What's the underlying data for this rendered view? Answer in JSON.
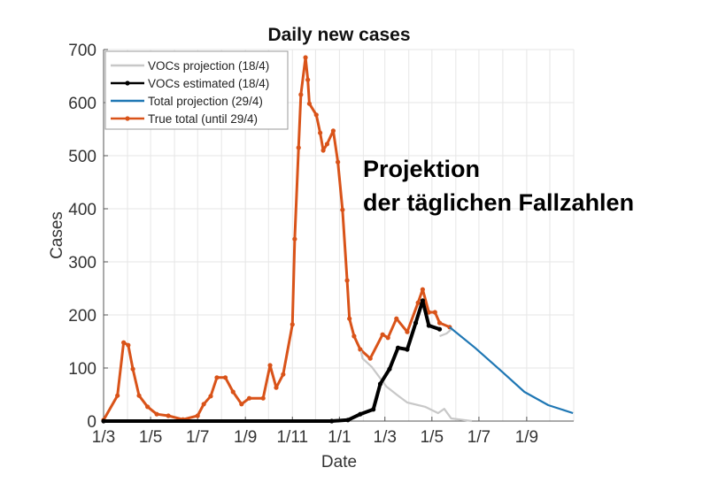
{
  "chart_data": {
    "type": "line",
    "title": "Daily new cases",
    "xlabel": "Date",
    "ylabel": "Cases",
    "xlim": [
      "2020-03-01",
      "2021-11-01"
    ],
    "ylim": [
      0,
      700
    ],
    "yticks": [
      0,
      100,
      200,
      300,
      400,
      500,
      600,
      700
    ],
    "xticks": [
      {
        "date": "2020-03-01",
        "label": "1/3"
      },
      {
        "date": "2020-05-01",
        "label": "1/5"
      },
      {
        "date": "2020-07-01",
        "label": "1/7"
      },
      {
        "date": "2020-09-01",
        "label": "1/9"
      },
      {
        "date": "2020-11-01",
        "label": "1/11"
      },
      {
        "date": "2021-01-01",
        "label": "1/1"
      },
      {
        "date": "2021-03-01",
        "label": "1/3"
      },
      {
        "date": "2021-05-01",
        "label": "1/5"
      },
      {
        "date": "2021-07-01",
        "label": "1/7"
      },
      {
        "date": "2021-09-01",
        "label": "1/9"
      }
    ],
    "grid": true,
    "legend_position": "top-left",
    "annotation": [
      "Projektion",
      "der täglichen Fallzahlen"
    ],
    "series": [
      {
        "name": "VOCs projection (18/4)",
        "color": "#c8c8c8",
        "marker": false,
        "points": [
          [
            "2021-01-29",
            132
          ],
          [
            "2021-01-31",
            118
          ],
          [
            "2021-02-12",
            102
          ],
          [
            "2021-03-03",
            65
          ],
          [
            "2021-03-18",
            48
          ],
          [
            "2021-03-30",
            35
          ],
          [
            "2021-04-22",
            27
          ],
          [
            "2021-05-09",
            15
          ],
          [
            "2021-05-17",
            23
          ],
          [
            "2021-05-26",
            5
          ],
          [
            "2021-06-22",
            0
          ],
          null,
          [
            "2021-05-11",
            160
          ],
          [
            "2021-05-20",
            165
          ],
          [
            "2021-05-28",
            175
          ]
        ]
      },
      {
        "name": "VOCs estimated (18/4)",
        "color": "#000000",
        "marker": true,
        "points": [
          [
            "2020-03-01",
            0
          ],
          [
            "2020-12-22",
            0
          ],
          [
            "2021-01-12",
            2
          ],
          [
            "2021-01-28",
            13
          ],
          [
            "2021-02-14",
            22
          ],
          [
            "2021-02-23",
            70
          ],
          [
            "2021-03-07",
            98
          ],
          [
            "2021-03-18",
            138
          ],
          [
            "2021-03-30",
            135
          ],
          [
            "2021-04-10",
            185
          ],
          [
            "2021-04-19",
            227
          ],
          [
            "2021-04-27",
            180
          ],
          [
            "2021-05-11",
            173
          ]
        ]
      },
      {
        "name": "Total projection (29/4)",
        "color": "#1f77b4",
        "marker": false,
        "points": [
          [
            "2021-05-24",
            177
          ],
          [
            "2021-06-26",
            138
          ],
          [
            "2021-07-31",
            93
          ],
          [
            "2021-08-29",
            55
          ],
          [
            "2021-09-29",
            30
          ],
          [
            "2021-10-31",
            15
          ]
        ]
      },
      {
        "name": "True total (until 29/4)",
        "color": "#d95319",
        "marker": true,
        "points": [
          [
            "2020-03-01",
            2
          ],
          [
            "2020-03-19",
            48
          ],
          [
            "2020-03-27",
            148
          ],
          [
            "2020-04-02",
            143
          ],
          [
            "2020-04-08",
            98
          ],
          [
            "2020-04-16",
            48
          ],
          [
            "2020-04-27",
            27
          ],
          [
            "2020-05-09",
            13
          ],
          [
            "2020-05-24",
            10
          ],
          [
            "2020-06-12",
            3
          ],
          [
            "2020-07-01",
            10
          ],
          [
            "2020-07-09",
            32
          ],
          [
            "2020-07-18",
            47
          ],
          [
            "2020-07-26",
            82
          ],
          [
            "2020-08-06",
            82
          ],
          [
            "2020-08-16",
            55
          ],
          [
            "2020-08-27",
            32
          ],
          [
            "2020-09-06",
            43
          ],
          [
            "2020-09-24",
            43
          ],
          [
            "2020-10-03",
            105
          ],
          [
            "2020-10-11",
            63
          ],
          [
            "2020-10-20",
            88
          ],
          [
            "2020-11-01",
            182
          ],
          [
            "2020-11-04",
            343
          ],
          [
            "2020-11-09",
            515
          ],
          [
            "2020-11-12",
            615
          ],
          [
            "2020-11-18",
            685
          ],
          [
            "2020-11-21",
            643
          ],
          [
            "2020-11-23",
            598
          ],
          [
            "2020-12-02",
            577
          ],
          [
            "2020-12-07",
            543
          ],
          [
            "2020-12-11",
            510
          ],
          [
            "2020-12-16",
            522
          ],
          [
            "2020-12-24",
            547
          ],
          [
            "2020-12-30",
            488
          ],
          [
            "2021-01-05",
            398
          ],
          [
            "2021-01-11",
            265
          ],
          [
            "2021-01-14",
            193
          ],
          [
            "2021-01-20",
            160
          ],
          [
            "2021-01-28",
            135
          ],
          [
            "2021-02-10",
            118
          ],
          [
            "2021-02-26",
            163
          ],
          [
            "2021-03-05",
            157
          ],
          [
            "2021-03-16",
            193
          ],
          [
            "2021-03-30",
            168
          ],
          [
            "2021-04-13",
            223
          ],
          [
            "2021-04-19",
            248
          ],
          [
            "2021-04-27",
            205
          ],
          [
            "2021-05-05",
            205
          ],
          [
            "2021-05-11",
            185
          ],
          [
            "2021-05-24",
            177
          ]
        ]
      }
    ]
  }
}
